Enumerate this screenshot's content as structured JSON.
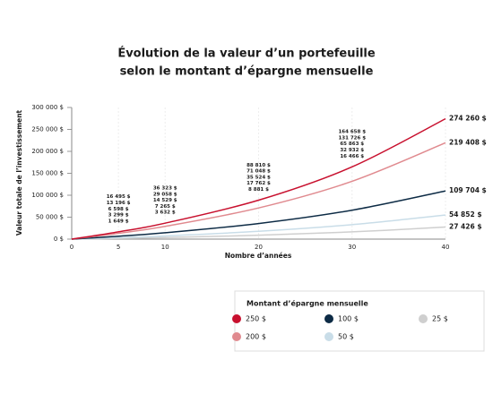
{
  "chart_data": {
    "type": "line",
    "title": [
      "Évolution de la valeur d’un portefeuille",
      "selon le montant d’épargne mensuelle"
    ],
    "x_label": "Nombre d’années",
    "y_label": "Valeur totale de l’investissement",
    "x": [
      0,
      5,
      10,
      20,
      30,
      40
    ],
    "xlim": [
      0,
      40
    ],
    "xticks": [
      0,
      5,
      10,
      20,
      30,
      40
    ],
    "ylim": [
      0,
      300000
    ],
    "yticks": [
      {
        "value": 0,
        "label": "0 $"
      },
      {
        "value": 50000,
        "label": "50 000 $"
      },
      {
        "value": 100000,
        "label": "100 000 $"
      },
      {
        "value": 150000,
        "label": "150 000 $"
      },
      {
        "value": 200000,
        "label": "200 000 $"
      },
      {
        "value": 250000,
        "label": "250 000 $"
      },
      {
        "value": 300000,
        "label": "300 000 $"
      }
    ],
    "grid": "x",
    "legend_title": "Montant d’épargne mensuelle",
    "series": [
      {
        "name": "250 $",
        "color": "#c8102e",
        "label_color": "#c8102e",
        "values": [
          0,
          16495,
          36323,
          88810,
          164658,
          274260
        ],
        "value_labels": [
          null,
          "16 495 $",
          "36 323 $",
          "88 810 $",
          "164 658 $",
          "274 260 $"
        ]
      },
      {
        "name": "200 $",
        "color": "#e08a8f",
        "label_color": "#e08a8f",
        "values": [
          0,
          13196,
          29058,
          71048,
          131726,
          219408
        ],
        "value_labels": [
          null,
          "13 196 $",
          "29 058 $",
          "71 048 $",
          "131 726 $",
          "219 408 $"
        ]
      },
      {
        "name": "100 $",
        "color": "#0d2b45",
        "label_color": "#0d2b45",
        "values": [
          0,
          6598,
          14529,
          35524,
          65863,
          109704
        ],
        "value_labels": [
          null,
          "6 598 $",
          "14 529 $",
          "35 524 $",
          "65 863 $",
          "109 704 $"
        ]
      },
      {
        "name": "50 $",
        "color": "#c9dde8",
        "label_color": "#9fbdd0",
        "values": [
          0,
          3299,
          7265,
          17762,
          32932,
          54852
        ],
        "value_labels": [
          null,
          "3 299 $",
          "7 265 $",
          "17 762 $",
          "32 932 $",
          "54 852 $"
        ]
      },
      {
        "name": "25 $",
        "color": "#cfcfcf",
        "label_color": "#b5b5b5",
        "values": [
          0,
          1649,
          3632,
          8881,
          16466,
          27426
        ],
        "value_labels": [
          null,
          "1 649 $",
          "3 632 $",
          "8 881 $",
          "16 466 $",
          "27 426 $"
        ]
      }
    ]
  }
}
